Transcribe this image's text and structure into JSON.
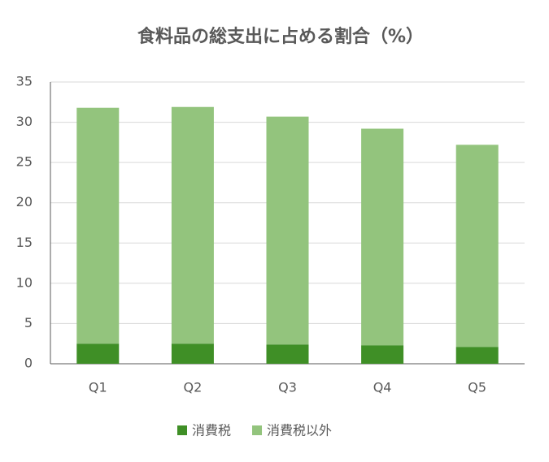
{
  "chart_data": {
    "type": "stacked_bar",
    "title": "食料品の総支出に占める割合（%）",
    "categories": [
      "Q1",
      "Q2",
      "Q3",
      "Q4",
      "Q5"
    ],
    "series": [
      {
        "name": "消費税",
        "color": "#3f8f26",
        "values": [
          2.5,
          2.5,
          2.4,
          2.3,
          2.1
        ]
      },
      {
        "name": "消費税以外",
        "color": "#93c47d",
        "values": [
          29.3,
          29.4,
          28.3,
          26.9,
          25.1
        ]
      }
    ],
    "ylim": [
      0,
      35
    ],
    "yticks": [
      0,
      5,
      10,
      15,
      20,
      25,
      30,
      35
    ],
    "grid": true,
    "legend": "bottom"
  }
}
